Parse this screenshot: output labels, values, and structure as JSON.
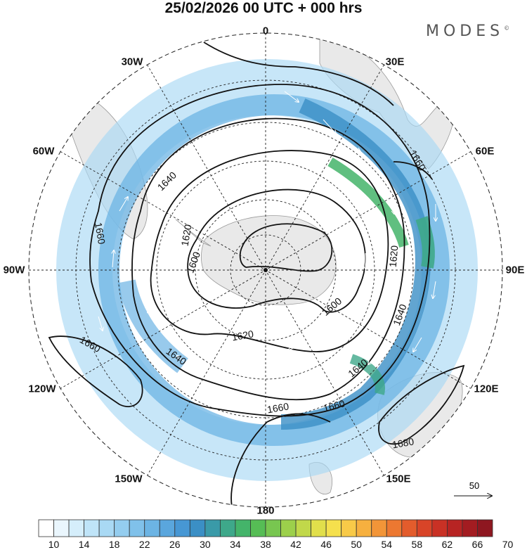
{
  "title": "25/02/2026  00 UTC  + 000 hrs",
  "brand": "MODES",
  "brand_mark": "©",
  "longitude_labels": [
    {
      "id": "lon-0",
      "text": "0"
    },
    {
      "id": "lon-30e",
      "text": "30E"
    },
    {
      "id": "lon-60e",
      "text": "60E"
    },
    {
      "id": "lon-90e",
      "text": "90E"
    },
    {
      "id": "lon-120e",
      "text": "120E"
    },
    {
      "id": "lon-150e",
      "text": "150E"
    },
    {
      "id": "lon-180",
      "text": "180"
    },
    {
      "id": "lon-150w",
      "text": "150W"
    },
    {
      "id": "lon-120w",
      "text": "120W"
    },
    {
      "id": "lon-90w",
      "text": "90W"
    },
    {
      "id": "lon-60w",
      "text": "60W"
    },
    {
      "id": "lon-30w",
      "text": "30W"
    }
  ],
  "contour_labels": [
    "1600",
    "1620",
    "1640",
    "1660",
    "1680"
  ],
  "wind_reference": {
    "value": "50"
  },
  "colorbar": {
    "tick_labels": [
      "10",
      "14",
      "18",
      "22",
      "26",
      "30",
      "34",
      "38",
      "42",
      "46",
      "50",
      "54",
      "58",
      "62",
      "66",
      "70"
    ],
    "colors": [
      "#ffffff",
      "#eaf6fd",
      "#d5eefb",
      "#bfe4f8",
      "#a9d9f4",
      "#94cdef",
      "#80c1ea",
      "#6cb4e4",
      "#5aa6dd",
      "#4797d4",
      "#3b8fc5",
      "#3a9aa8",
      "#3ea88a",
      "#44b46a",
      "#56bd55",
      "#78c650",
      "#9cd04b",
      "#c1d84a",
      "#e1df4b",
      "#f5e04d",
      "#f8ca48",
      "#f6b03f",
      "#f29538",
      "#ec7831",
      "#e35c2c",
      "#d84428",
      "#c93125",
      "#b72423",
      "#a31c21",
      "#8e1720"
    ]
  }
}
